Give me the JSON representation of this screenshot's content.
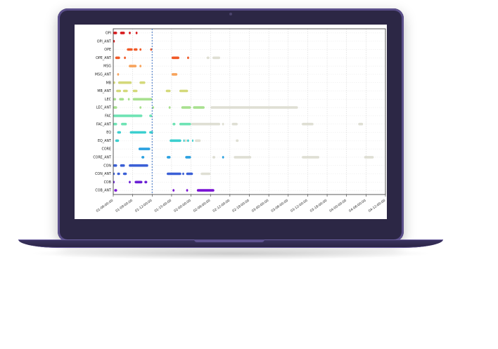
{
  "chart_data": {
    "type": "timeline",
    "title": "",
    "xlabel": "",
    "ylabel": "",
    "x_ticks": [
      "01-06:00:00",
      "01-09:00:00",
      "01-12:00:00",
      "01-15:00:00",
      "02-00:00:00",
      "02-06:00:00",
      "02-12:00:00",
      "02-18:00:00",
      "03-00:00:00",
      "03-06:00:00",
      "03-12:00:00",
      "03-18:00:00",
      "04-00:00:00",
      "04-06:00:00",
      "04-12:00:00"
    ],
    "x_range": [
      0,
      14
    ],
    "grid": true,
    "marker_time": 2,
    "rows": [
      {
        "label": "OPI",
        "color": "#d7191c",
        "segments": [
          [
            0,
            0.2
          ],
          [
            0.35,
            0.6
          ],
          [
            0.8,
            0.9
          ],
          [
            1.15,
            1.25
          ]
        ]
      },
      {
        "label": "OPI_ANT",
        "color": "#d7191c",
        "segments": [
          [
            0,
            0.08
          ]
        ]
      },
      {
        "label": "OPE",
        "color": "#f05a28",
        "segments": [
          [
            0.7,
            1.0
          ],
          [
            1.05,
            1.25
          ],
          [
            1.35,
            1.45
          ],
          [
            1.9,
            2.0
          ]
        ]
      },
      {
        "label": "OPE_ANT",
        "color": "#f05a28",
        "segments": [
          [
            0.1,
            0.35
          ],
          [
            0.55,
            0.65
          ],
          [
            3.0,
            3.4
          ],
          [
            3.8,
            3.9
          ]
        ],
        "faded": [
          [
            4.8,
            4.95
          ],
          [
            5.1,
            5.5
          ]
        ]
      },
      {
        "label": "MSG",
        "color": "#f7a35c",
        "segments": [
          [
            0.8,
            1.2
          ],
          [
            1.35,
            1.45
          ]
        ]
      },
      {
        "label": "MSG_ANT",
        "color": "#f7a35c",
        "segments": [
          [
            0.2,
            0.3
          ],
          [
            3.0,
            3.3
          ]
        ]
      },
      {
        "label": "MB",
        "color": "#d4d97a",
        "segments": [
          [
            0,
            0.1
          ],
          [
            0.25,
            0.95
          ],
          [
            1.35,
            1.65
          ]
        ]
      },
      {
        "label": "MB_ANT",
        "color": "#d4d97a",
        "segments": [
          [
            0.15,
            0.4
          ],
          [
            0.5,
            0.75
          ],
          [
            1.0,
            1.25
          ],
          [
            2.7,
            2.95
          ],
          [
            3.4,
            3.85
          ]
        ]
      },
      {
        "label": "LEC",
        "color": "#a8e08f",
        "segments": [
          [
            0,
            0.15
          ],
          [
            0.3,
            0.55
          ],
          [
            0.75,
            0.85
          ],
          [
            1.0,
            2.0
          ]
        ]
      },
      {
        "label": "LEC_ANT",
        "color": "#a8e08f",
        "segments": [
          [
            0,
            0.2
          ],
          [
            1.35,
            1.45
          ],
          [
            2.0,
            2.1
          ],
          [
            2.85,
            2.95
          ],
          [
            3.5,
            4.0
          ],
          [
            4.1,
            4.7
          ]
        ],
        "faded": [
          [
            5.0,
            9.5
          ]
        ]
      },
      {
        "label": "FAC",
        "color": "#6ee3b4",
        "segments": [
          [
            0,
            1.5
          ],
          [
            1.85,
            2.0
          ]
        ]
      },
      {
        "label": "FAC_ANT",
        "color": "#6ee3b4",
        "segments": [
          [
            0,
            0.2
          ],
          [
            0.4,
            0.7
          ],
          [
            3.05,
            3.2
          ],
          [
            3.4,
            4.0
          ]
        ],
        "faded": [
          [
            4.0,
            5.5
          ],
          [
            5.6,
            5.7
          ],
          [
            6.1,
            6.4
          ],
          [
            9.7,
            10.3
          ],
          [
            12.6,
            12.85
          ]
        ]
      },
      {
        "label": "EQ",
        "color": "#3ccfcf",
        "segments": [
          [
            0.2,
            0.4
          ],
          [
            0.85,
            1.7
          ],
          [
            1.85,
            2.05
          ]
        ]
      },
      {
        "label": "EQ_ANT",
        "color": "#3ccfcf",
        "segments": [
          [
            0.1,
            0.3
          ],
          [
            2.9,
            3.5
          ],
          [
            3.6,
            3.65
          ],
          [
            3.8,
            3.9
          ],
          [
            4.05,
            4.1
          ]
        ],
        "faded": [
          [
            3.65,
            3.8
          ],
          [
            4.2,
            4.5
          ],
          [
            6.3,
            6.45
          ]
        ]
      },
      {
        "label": "CORE",
        "color": "#2aa0e0",
        "segments": [
          [
            1.3,
            1.9
          ]
        ]
      },
      {
        "label": "CORE_ANT",
        "color": "#2aa0e0",
        "segments": [
          [
            1.45,
            1.6
          ],
          [
            2.75,
            2.95
          ],
          [
            3.7,
            4.0
          ],
          [
            5.6,
            5.7
          ]
        ],
        "faded": [
          [
            5.1,
            5.25
          ],
          [
            6.2,
            7.1
          ],
          [
            9.7,
            10.6
          ],
          [
            12.9,
            13.4
          ]
        ]
      },
      {
        "label": "CON",
        "color": "#3a5fd6",
        "segments": [
          [
            0,
            0.2
          ],
          [
            0.35,
            0.6
          ],
          [
            0.8,
            1.8
          ]
        ]
      },
      {
        "label": "CON_ANT",
        "color": "#3a5fd6",
        "segments": [
          [
            0,
            0.08
          ],
          [
            0.2,
            0.35
          ],
          [
            0.5,
            0.7
          ],
          [
            2.75,
            3.5
          ],
          [
            3.55,
            3.65
          ],
          [
            3.75,
            4.1
          ]
        ],
        "faded": [
          [
            4.5,
            5.0
          ]
        ]
      },
      {
        "label": "COB",
        "color": "#6a1fd4",
        "segments": [
          [
            0,
            0.05
          ],
          [
            0.8,
            0.9
          ],
          [
            1.1,
            1.5
          ],
          [
            1.6,
            1.75
          ]
        ]
      },
      {
        "label": "COB_ANT",
        "color": "#7a12d4",
        "segments": [
          [
            0.05,
            0.2
          ],
          [
            3.05,
            3.15
          ],
          [
            3.75,
            3.85
          ],
          [
            4.3,
            5.2
          ]
        ]
      }
    ]
  }
}
